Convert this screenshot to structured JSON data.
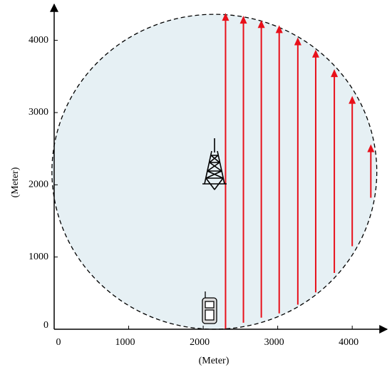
{
  "chart_data": {
    "type": "coverage",
    "xlabel": "(Meter)",
    "ylabel": "(Meter)",
    "xlim": [
      0,
      4400
    ],
    "ylim": [
      0,
      4450
    ],
    "xticks": [
      0,
      1000,
      2000,
      3000,
      4000
    ],
    "yticks": [
      0,
      1000,
      2000,
      3000,
      4000
    ],
    "circle": {
      "center_x": 2150,
      "center_y": 2180,
      "radius": 2180,
      "fill": "#e6f0f4"
    },
    "arrows": {
      "color": "#e8101a",
      "x": [
        2300,
        2540,
        2780,
        3020,
        3270,
        3510,
        3760,
        4000,
        4250
      ],
      "start": [
        0,
        90,
        160,
        220,
        340,
        510,
        780,
        1150,
        1820
      ],
      "end": [
        4380,
        4340,
        4280,
        4210,
        4040,
        3870,
        3600,
        3230,
        2560
      ]
    }
  }
}
